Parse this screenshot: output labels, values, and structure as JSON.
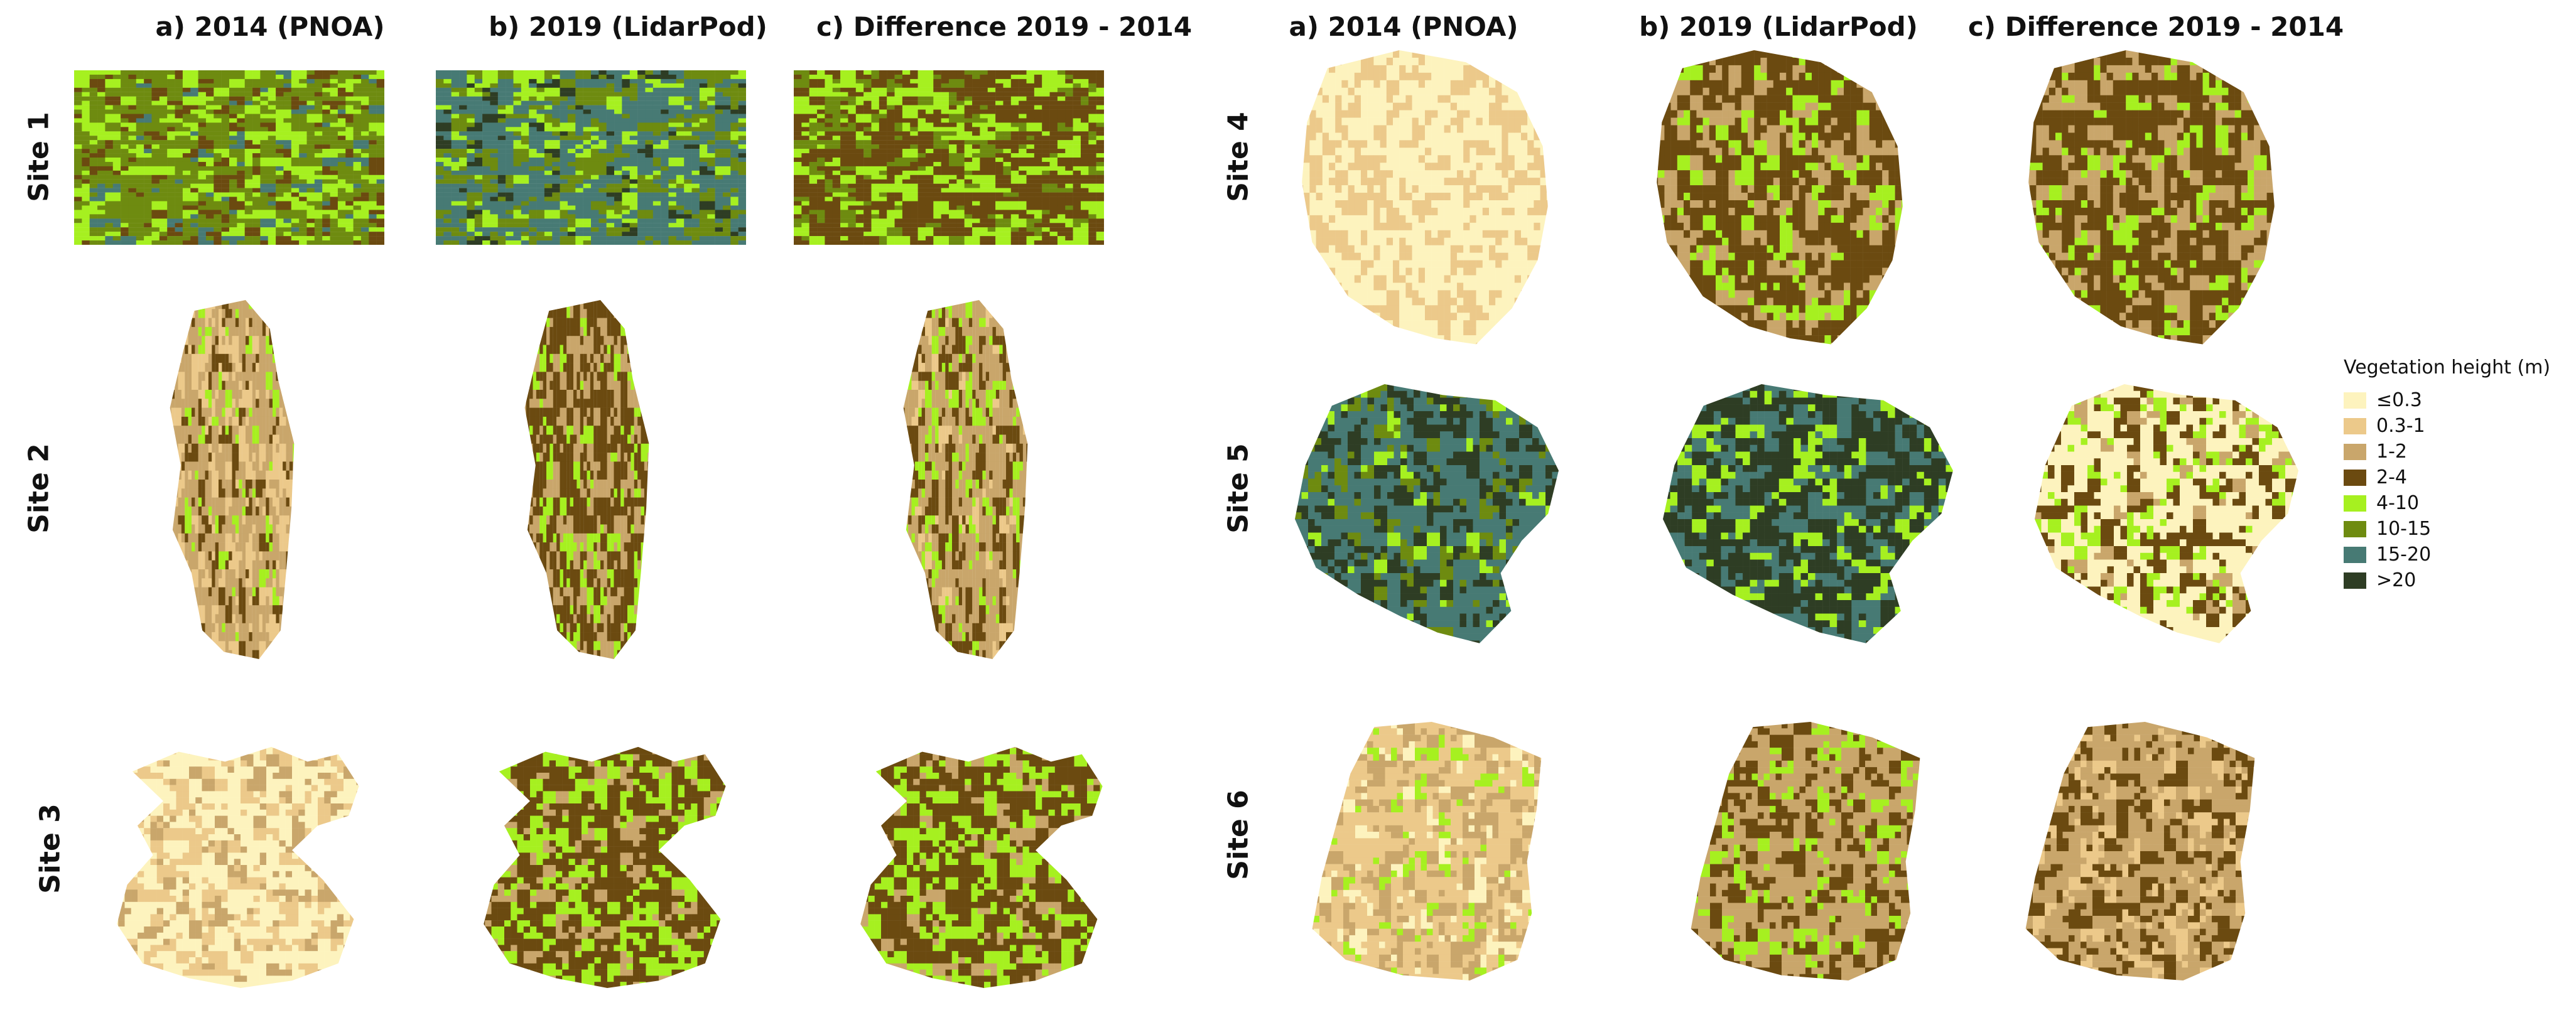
{
  "columns": [
    "a) 2014 (PNOA)",
    "b) 2019 (LidarPod)",
    "c) Difference 2019 - 2014",
    "a) 2014 (PNOA)",
    "b) 2019 (LidarPod)",
    "c) Difference 2019 - 2014"
  ],
  "sites": [
    "Site 1",
    "Site 2",
    "Site 3",
    "Site 4",
    "Site 5",
    "Site 6"
  ],
  "legend": {
    "title": "Vegetation height (m)",
    "classes": [
      {
        "label": "≤0.3",
        "color": "#FDF3BE"
      },
      {
        "label": "0.3-1",
        "color": "#ECC98A"
      },
      {
        "label": "1-2",
        "color": "#C9A66B"
      },
      {
        "label": "2-4",
        "color": "#6B4A10"
      },
      {
        "label": "4-10",
        "color": "#A6F020"
      },
      {
        "label": "10-15",
        "color": "#6E8B10"
      },
      {
        "label": "15-20",
        "color": "#477A74"
      },
      {
        "label": ">20",
        "color": "#2E3D24"
      }
    ]
  },
  "maps": [
    {
      "site": "Site 1",
      "panel": "a) 2014 (PNOA)",
      "dominant": [
        "10-15",
        "4-10",
        "2-4",
        "15-20"
      ]
    },
    {
      "site": "Site 1",
      "panel": "b) 2019 (LidarPod)",
      "dominant": [
        "15-20",
        "10-15",
        "4-10",
        ">20"
      ]
    },
    {
      "site": "Site 1",
      "panel": "c) Difference 2019 - 2014",
      "dominant": [
        "2-4",
        "4-10",
        "10-15"
      ]
    },
    {
      "site": "Site 2",
      "panel": "a) 2014 (PNOA)",
      "dominant": [
        "1-2",
        "0.3-1",
        "2-4",
        "4-10"
      ]
    },
    {
      "site": "Site 2",
      "panel": "b) 2019 (LidarPod)",
      "dominant": [
        "2-4",
        "1-2",
        "4-10"
      ]
    },
    {
      "site": "Site 2",
      "panel": "c) Difference 2019 - 2014",
      "dominant": [
        "1-2",
        "2-4",
        "4-10",
        "0.3-1"
      ]
    },
    {
      "site": "Site 3",
      "panel": "a) 2014 (PNOA)",
      "dominant": [
        "≤0.3",
        "0.3-1",
        "1-2"
      ]
    },
    {
      "site": "Site 3",
      "panel": "b) 2019 (LidarPod)",
      "dominant": [
        "2-4",
        "4-10",
        "1-2"
      ]
    },
    {
      "site": "Site 3",
      "panel": "c) Difference 2019 - 2014",
      "dominant": [
        "2-4",
        "4-10",
        "1-2"
      ]
    },
    {
      "site": "Site 4",
      "panel": "a) 2014 (PNOA)",
      "dominant": [
        "≤0.3",
        "0.3-1"
      ]
    },
    {
      "site": "Site 4",
      "panel": "b) 2019 (LidarPod)",
      "dominant": [
        "2-4",
        "1-2",
        "4-10"
      ]
    },
    {
      "site": "Site 4",
      "panel": "c) Difference 2019 - 2014",
      "dominant": [
        "2-4",
        "1-2",
        "4-10"
      ]
    },
    {
      "site": "Site 5",
      "panel": "a) 2014 (PNOA)",
      "dominant": [
        "15-20",
        ">20",
        "10-15",
        "4-10"
      ]
    },
    {
      "site": "Site 5",
      "panel": "b) 2019 (LidarPod)",
      "dominant": [
        ">20",
        "15-20",
        "4-10"
      ]
    },
    {
      "site": "Site 5",
      "panel": "c) Difference 2019 - 2014",
      "dominant": [
        "≤0.3",
        "2-4",
        "4-10",
        "1-2"
      ]
    },
    {
      "site": "Site 6",
      "panel": "a) 2014 (PNOA)",
      "dominant": [
        "0.3-1",
        "1-2",
        "≤0.3",
        "4-10"
      ]
    },
    {
      "site": "Site 6",
      "panel": "b) 2019 (LidarPod)",
      "dominant": [
        "1-2",
        "2-4",
        "4-10"
      ]
    },
    {
      "site": "Site 6",
      "panel": "c) Difference 2019 - 2014",
      "dominant": [
        "1-2",
        "2-4",
        "0.3-1"
      ]
    }
  ]
}
